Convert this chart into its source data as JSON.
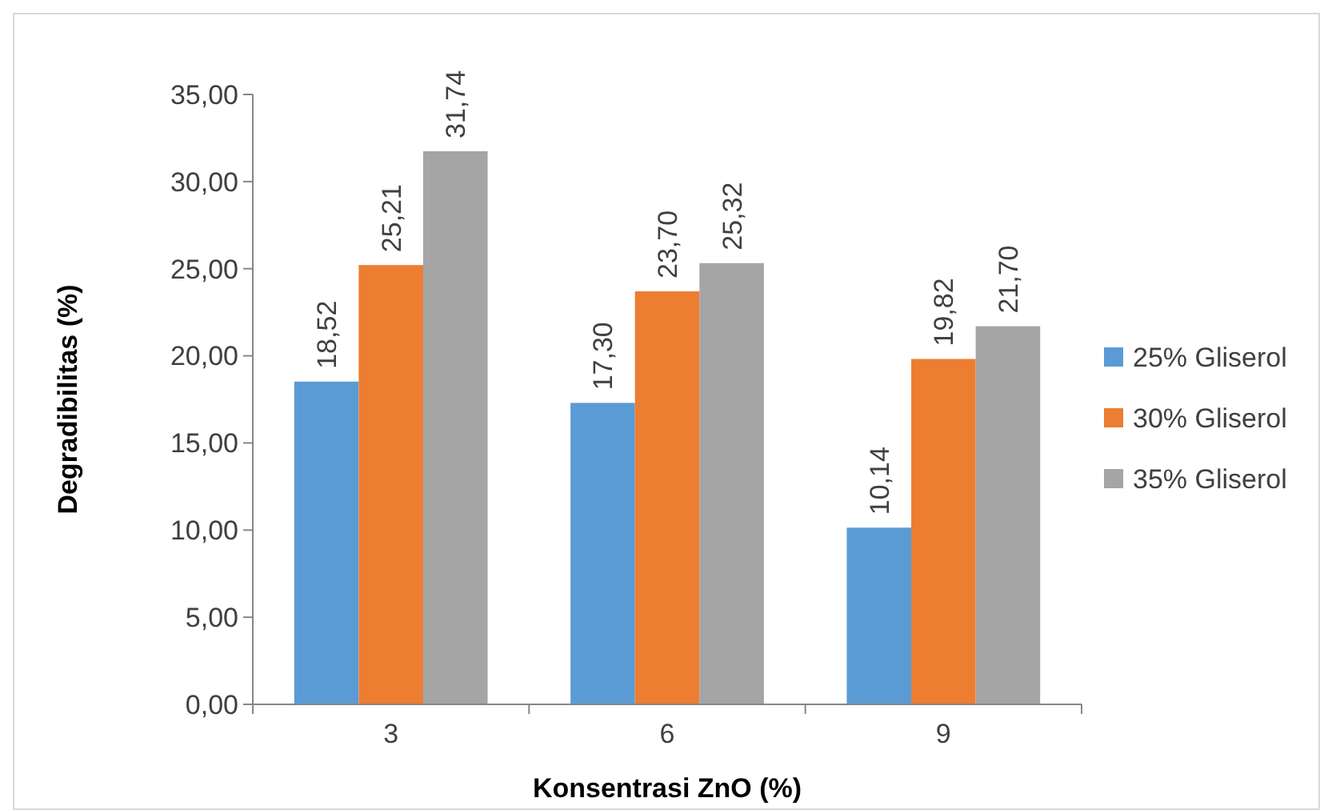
{
  "chart_data": {
    "type": "bar",
    "xlabel": "Konsentrasi ZnO (%)",
    "ylabel": "Degradibilitas (%)",
    "categories": [
      "3",
      "6",
      "9"
    ],
    "series": [
      {
        "name": "25% Gliserol",
        "color": "#5b9bd5",
        "values": [
          18.52,
          17.3,
          10.14
        ],
        "value_labels": [
          "18,52",
          "17,30",
          "10,14"
        ]
      },
      {
        "name": "30% Gliserol",
        "color": "#ed7d31",
        "values": [
          25.21,
          23.7,
          19.82
        ],
        "value_labels": [
          "25,21",
          "23,70",
          "19,82"
        ]
      },
      {
        "name": "35% Gliserol",
        "color": "#a5a5a5",
        "values": [
          31.74,
          25.32,
          21.7
        ],
        "value_labels": [
          "31,74",
          "25,32",
          "21,70"
        ]
      }
    ],
    "ylim": [
      0,
      35
    ],
    "yticks": [
      {
        "value": 0,
        "label": "0,00"
      },
      {
        "value": 5,
        "label": "5,00"
      },
      {
        "value": 10,
        "label": "10,00"
      },
      {
        "value": 15,
        "label": "15,00"
      },
      {
        "value": 20,
        "label": "20,00"
      },
      {
        "value": 25,
        "label": "25,00"
      },
      {
        "value": 30,
        "label": "30,00"
      },
      {
        "value": 35,
        "label": "35,00"
      }
    ],
    "grid": false,
    "legend": "right"
  }
}
